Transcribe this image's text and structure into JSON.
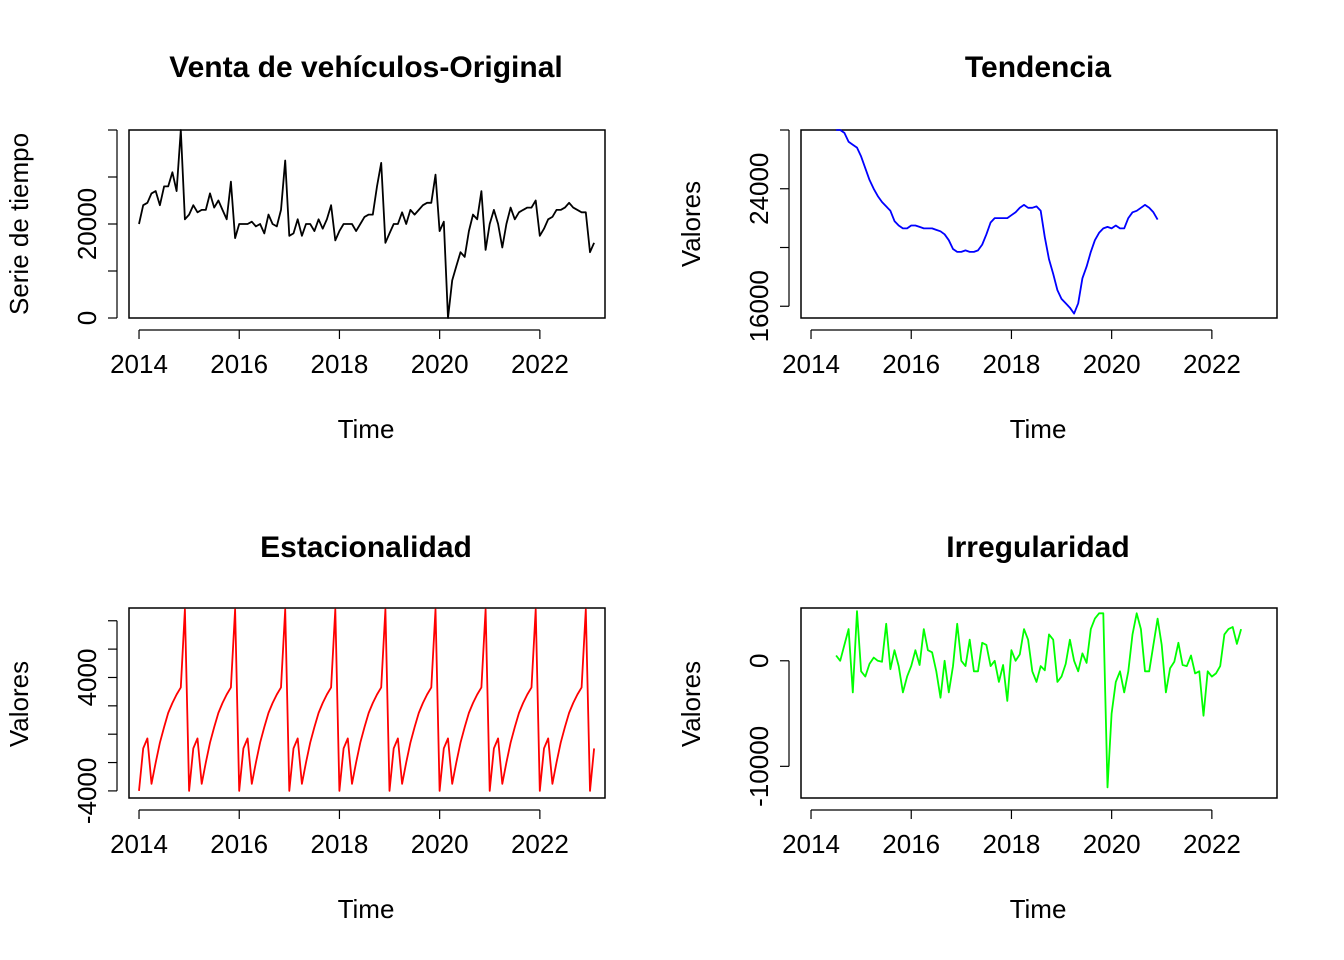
{
  "panels": [
    {
      "title": "Venta de vehículos-Original",
      "xlabel": "Time",
      "ylabel": "Serie de tiempo",
      "color": "#000000"
    },
    {
      "title": "Tendencia",
      "xlabel": "Time",
      "ylabel": "Valores",
      "color": "#0000FF"
    },
    {
      "title": "Estacionalidad",
      "xlabel": "Time",
      "ylabel": "Valores",
      "color": "#FF0000"
    },
    {
      "title": "Irregularidad",
      "xlabel": "Time",
      "ylabel": "Valores",
      "color": "#00FF00"
    }
  ],
  "chart_data": [
    {
      "type": "line",
      "title": "Venta de vehículos-Original",
      "xlabel": "Time",
      "ylabel": "Serie de tiempo",
      "xlim": [
        2013.8,
        2023.3
      ],
      "ylim": [
        0,
        40000
      ],
      "x_ticks": [
        2014,
        2016,
        2018,
        2020,
        2022
      ],
      "y_ticks": [
        0,
        10000,
        20000,
        30000,
        40000
      ],
      "y_tick_labels": [
        "0",
        "",
        "20000",
        "",
        ""
      ],
      "x_start": 2014,
      "x_step": 0.08333,
      "values": [
        20000,
        24000,
        24500,
        26500,
        27000,
        24000,
        28000,
        28000,
        31000,
        27000,
        40000,
        21000,
        22000,
        24000,
        22500,
        23000,
        23000,
        26500,
        23500,
        25000,
        23000,
        21000,
        29000,
        17000,
        20000,
        20000,
        20000,
        20500,
        19500,
        20000,
        18000,
        22000,
        20000,
        19500,
        23000,
        33500,
        17500,
        18000,
        21000,
        17500,
        20000,
        20000,
        18500,
        21000,
        19000,
        21000,
        24000,
        16500,
        18500,
        20000,
        20000,
        20000,
        18500,
        20000,
        21500,
        22000,
        22000,
        28000,
        33000,
        16000,
        18000,
        20000,
        20000,
        22500,
        20000,
        23000,
        22000,
        23000,
        24000,
        24500,
        24500,
        30500,
        18500,
        20500,
        0,
        8000,
        11000,
        14000,
        13000,
        18500,
        22000,
        21000,
        27000,
        14500,
        20000,
        23000,
        20000,
        15000,
        20000,
        23500,
        21000,
        22500,
        23000,
        23500,
        23500,
        25000,
        17500,
        19000,
        21000,
        21500,
        23000,
        23000,
        23500,
        24500,
        23500,
        23000,
        22500,
        22500,
        14000,
        16000
      ],
      "grid": false
    },
    {
      "type": "line",
      "title": "Tendencia",
      "xlabel": "Time",
      "ylabel": "Valores",
      "xlim": [
        2013.8,
        2023.3
      ],
      "ylim": [
        15200,
        28000
      ],
      "x_ticks": [
        2014,
        2016,
        2018,
        2020,
        2022
      ],
      "y_ticks": [
        16000,
        20000,
        24000,
        28000
      ],
      "y_tick_labels": [
        "16000",
        "",
        "24000",
        ""
      ],
      "x_start": 2014.5,
      "x_step": 0.08333,
      "values": [
        28000,
        28000,
        27800,
        27200,
        27000,
        26800,
        26200,
        25400,
        24600,
        24000,
        23500,
        23100,
        22800,
        22500,
        21800,
        21500,
        21300,
        21300,
        21500,
        21500,
        21400,
        21300,
        21300,
        21300,
        21200,
        21100,
        20900,
        20500,
        19900,
        19700,
        19700,
        19800,
        19700,
        19700,
        19800,
        20200,
        20900,
        21700,
        22000,
        22000,
        22000,
        22000,
        22200,
        22400,
        22700,
        22900,
        22700,
        22700,
        22800,
        22500,
        20700,
        19200,
        18200,
        17100,
        16500,
        16200,
        15900,
        15500,
        16200,
        17900,
        18700,
        19700,
        20500,
        21000,
        21300,
        21400,
        21300,
        21500,
        21300,
        21300,
        22000,
        22400,
        22500,
        22700,
        22900,
        22700,
        22400,
        21900
      ],
      "grid": false
    },
    {
      "type": "line",
      "title": "Estacionalidad",
      "xlabel": "Time",
      "ylabel": "Valores",
      "xlim": [
        2013.8,
        2023.3
      ],
      "ylim": [
        -4500,
        8900
      ],
      "x_ticks": [
        2014,
        2016,
        2018,
        2020,
        2022
      ],
      "y_ticks": [
        -4000,
        -2000,
        0,
        2000,
        4000,
        6000,
        8000
      ],
      "y_tick_labels": [
        "-4000",
        "",
        "",
        "",
        "4000",
        "",
        ""
      ],
      "x_start": 2014,
      "x_step": 0.08333,
      "season": [
        -4000,
        -1000,
        -300,
        -3500,
        -2000,
        -600,
        500,
        1500,
        2200,
        2800,
        3300,
        8800
      ],
      "cycles": 9,
      "tail": [
        -4000,
        -1000
      ],
      "grid": false
    },
    {
      "type": "line",
      "title": "Irregularidad",
      "xlabel": "Time",
      "ylabel": "Valores",
      "xlim": [
        2013.8,
        2023.3
      ],
      "ylim": [
        -13000,
        5000
      ],
      "x_ticks": [
        2014,
        2016,
        2018,
        2020,
        2022
      ],
      "y_ticks": [
        -10000,
        0
      ],
      "y_tick_labels": [
        "-10000",
        "0"
      ],
      "x_start": 2014.5,
      "x_step": 0.08333,
      "values": [
        500,
        0,
        1500,
        3000,
        -3000,
        4700,
        -1000,
        -1500,
        -300,
        300,
        0,
        -100,
        3500,
        -800,
        1000,
        -500,
        -3000,
        -1500,
        -500,
        1000,
        -400,
        3000,
        1000,
        800,
        -1000,
        -3500,
        0,
        -3000,
        -500,
        3500,
        0,
        -500,
        2000,
        -1000,
        -1000,
        1700,
        1500,
        -500,
        0,
        -2000,
        -400,
        -3800,
        1000,
        0,
        600,
        3000,
        2000,
        -1000,
        -2000,
        -500,
        -900,
        2500,
        2000,
        -2000,
        -1500,
        -300,
        2000,
        0,
        -1000,
        700,
        -200,
        3000,
        4000,
        4500,
        4500,
        -12000,
        -5000,
        -2000,
        -1000,
        -3000,
        -1000,
        2500,
        4500,
        3000,
        -1000,
        -1000,
        1500,
        4000,
        1500,
        -3000,
        -700,
        -100,
        1700,
        -400,
        -500,
        500,
        -1200,
        -1000,
        -5200,
        -1000,
        -1500,
        -1200,
        -500,
        2500,
        3000,
        3200,
        1600,
        3000
      ],
      "grid": false
    }
  ]
}
